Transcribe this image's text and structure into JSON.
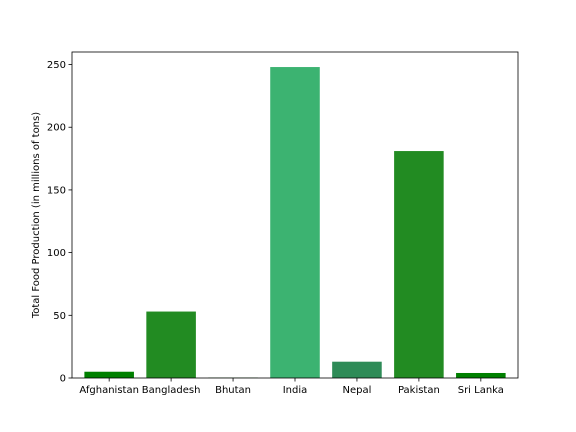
{
  "chart_data": {
    "type": "bar",
    "title": "",
    "xlabel": "",
    "ylabel": "Total Food Production (in millions of tons)",
    "categories": [
      "Afghanistan",
      "Bangladesh",
      "Bhutan",
      "India",
      "Nepal",
      "Pakistan",
      "Sri Lanka"
    ],
    "values": [
      5,
      53,
      0.3,
      248,
      13,
      181,
      4
    ],
    "colors": [
      "#008000",
      "#228b22",
      "#228b22",
      "#3cb371",
      "#2e8b57",
      "#228b22",
      "#008000"
    ],
    "ylim": [
      0,
      260
    ],
    "yticks": [
      0,
      50,
      100,
      150,
      200,
      250
    ],
    "grid": false,
    "legend": "none"
  }
}
